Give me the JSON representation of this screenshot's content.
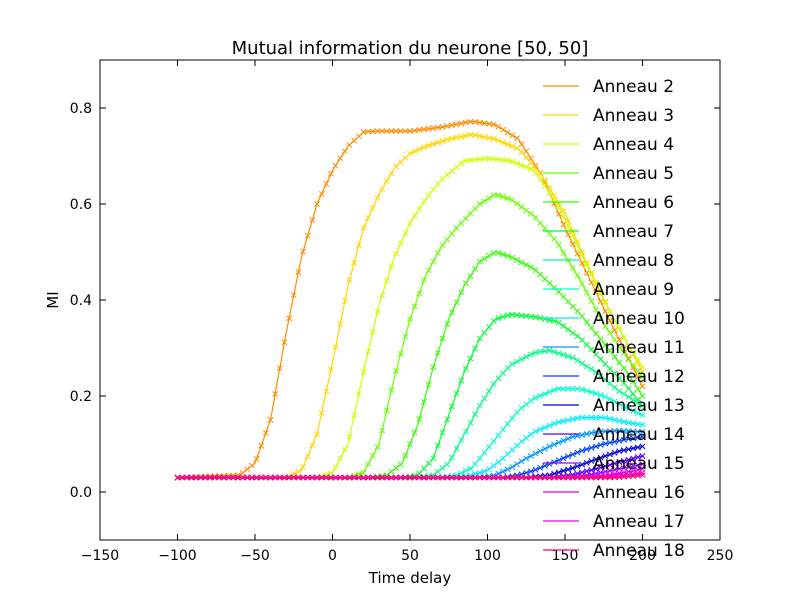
{
  "chart_data": {
    "type": "line",
    "title": "Mutual information du neurone [50, 50]",
    "xlabel": "Time delay",
    "ylabel": "MI",
    "xlim": [
      -150,
      250
    ],
    "ylim": [
      -0.1,
      0.9
    ],
    "xticks": [
      "−150",
      "−100",
      "−50",
      "0",
      "50",
      "100",
      "150",
      "200",
      "250"
    ],
    "yticks": [
      "0.0",
      "0.2",
      "0.4",
      "0.6",
      "0.8"
    ],
    "xtick_values": [
      -150,
      -100,
      -50,
      0,
      50,
      100,
      150,
      200,
      250
    ],
    "ytick_values": [
      0.0,
      0.2,
      0.4,
      0.6,
      0.8
    ],
    "grid": false,
    "legend_position": "top-right",
    "marker": "x",
    "x_range": [
      -100,
      200
    ],
    "series": [
      {
        "name": "Anneau 2",
        "color": "#ff8c00",
        "points": [
          [
            -100,
            0.03
          ],
          [
            -60,
            0.035
          ],
          [
            -50,
            0.06
          ],
          [
            -40,
            0.15
          ],
          [
            -30,
            0.33
          ],
          [
            -20,
            0.49
          ],
          [
            -10,
            0.6
          ],
          [
            0,
            0.67
          ],
          [
            10,
            0.72
          ],
          [
            20,
            0.75
          ],
          [
            30,
            0.752
          ],
          [
            50,
            0.752
          ],
          [
            70,
            0.76
          ],
          [
            90,
            0.772
          ],
          [
            105,
            0.765
          ],
          [
            120,
            0.735
          ],
          [
            135,
            0.66
          ],
          [
            150,
            0.55
          ],
          [
            165,
            0.45
          ],
          [
            180,
            0.35
          ],
          [
            200,
            0.22
          ]
        ]
      },
      {
        "name": "Anneau 3",
        "color": "#ffd700",
        "points": [
          [
            -100,
            0.03
          ],
          [
            -30,
            0.03
          ],
          [
            -20,
            0.045
          ],
          [
            -10,
            0.12
          ],
          [
            0,
            0.27
          ],
          [
            10,
            0.43
          ],
          [
            20,
            0.55
          ],
          [
            30,
            0.62
          ],
          [
            40,
            0.675
          ],
          [
            50,
            0.705
          ],
          [
            60,
            0.72
          ],
          [
            75,
            0.735
          ],
          [
            90,
            0.745
          ],
          [
            105,
            0.735
          ],
          [
            120,
            0.715
          ],
          [
            135,
            0.66
          ],
          [
            150,
            0.58
          ],
          [
            165,
            0.47
          ],
          [
            180,
            0.37
          ],
          [
            200,
            0.25
          ]
        ]
      },
      {
        "name": "Anneau 4",
        "color": "#ccff00",
        "points": [
          [
            -100,
            0.03
          ],
          [
            -10,
            0.03
          ],
          [
            0,
            0.04
          ],
          [
            10,
            0.1
          ],
          [
            20,
            0.25
          ],
          [
            30,
            0.39
          ],
          [
            40,
            0.49
          ],
          [
            50,
            0.56
          ],
          [
            60,
            0.61
          ],
          [
            70,
            0.65
          ],
          [
            85,
            0.69
          ],
          [
            100,
            0.695
          ],
          [
            115,
            0.69
          ],
          [
            130,
            0.67
          ],
          [
            145,
            0.6
          ],
          [
            160,
            0.5
          ],
          [
            175,
            0.4
          ],
          [
            190,
            0.31
          ],
          [
            200,
            0.26
          ]
        ]
      },
      {
        "name": "Anneau 5",
        "color": "#66ff00",
        "points": [
          [
            -100,
            0.03
          ],
          [
            10,
            0.03
          ],
          [
            20,
            0.04
          ],
          [
            30,
            0.1
          ],
          [
            40,
            0.24
          ],
          [
            50,
            0.36
          ],
          [
            60,
            0.45
          ],
          [
            70,
            0.51
          ],
          [
            80,
            0.55
          ],
          [
            95,
            0.6
          ],
          [
            105,
            0.62
          ],
          [
            115,
            0.61
          ],
          [
            130,
            0.575
          ],
          [
            145,
            0.52
          ],
          [
            160,
            0.44
          ],
          [
            175,
            0.35
          ],
          [
            190,
            0.28
          ],
          [
            200,
            0.24
          ]
        ]
      },
      {
        "name": "Anneau 6",
        "color": "#33ff00",
        "points": [
          [
            -100,
            0.03
          ],
          [
            25,
            0.03
          ],
          [
            35,
            0.035
          ],
          [
            45,
            0.06
          ],
          [
            55,
            0.14
          ],
          [
            65,
            0.26
          ],
          [
            75,
            0.36
          ],
          [
            85,
            0.43
          ],
          [
            95,
            0.48
          ],
          [
            105,
            0.5
          ],
          [
            115,
            0.49
          ],
          [
            130,
            0.465
          ],
          [
            145,
            0.42
          ],
          [
            160,
            0.37
          ],
          [
            175,
            0.31
          ],
          [
            190,
            0.25
          ],
          [
            200,
            0.2
          ]
        ]
      },
      {
        "name": "Anneau 7",
        "color": "#00ff33",
        "points": [
          [
            -100,
            0.03
          ],
          [
            45,
            0.03
          ],
          [
            55,
            0.035
          ],
          [
            65,
            0.07
          ],
          [
            75,
            0.16
          ],
          [
            85,
            0.25
          ],
          [
            95,
            0.32
          ],
          [
            105,
            0.36
          ],
          [
            115,
            0.37
          ],
          [
            130,
            0.365
          ],
          [
            145,
            0.355
          ],
          [
            160,
            0.32
          ],
          [
            175,
            0.27
          ],
          [
            190,
            0.22
          ],
          [
            200,
            0.18
          ]
        ]
      },
      {
        "name": "Anneau 8",
        "color": "#00ff88",
        "points": [
          [
            -100,
            0.03
          ],
          [
            55,
            0.03
          ],
          [
            65,
            0.035
          ],
          [
            75,
            0.06
          ],
          [
            85,
            0.12
          ],
          [
            95,
            0.18
          ],
          [
            105,
            0.23
          ],
          [
            115,
            0.265
          ],
          [
            130,
            0.29
          ],
          [
            140,
            0.295
          ],
          [
            155,
            0.28
          ],
          [
            170,
            0.25
          ],
          [
            185,
            0.21
          ],
          [
            200,
            0.18
          ]
        ]
      },
      {
        "name": "Anneau 9",
        "color": "#00ffcc",
        "points": [
          [
            -100,
            0.03
          ],
          [
            70,
            0.03
          ],
          [
            80,
            0.035
          ],
          [
            90,
            0.05
          ],
          [
            100,
            0.09
          ],
          [
            110,
            0.13
          ],
          [
            120,
            0.17
          ],
          [
            130,
            0.195
          ],
          [
            145,
            0.215
          ],
          [
            160,
            0.215
          ],
          [
            175,
            0.2
          ],
          [
            190,
            0.175
          ],
          [
            200,
            0.16
          ]
        ]
      },
      {
        "name": "Anneau 10",
        "color": "#00eeff",
        "points": [
          [
            -100,
            0.03
          ],
          [
            80,
            0.03
          ],
          [
            90,
            0.035
          ],
          [
            100,
            0.045
          ],
          [
            110,
            0.07
          ],
          [
            120,
            0.1
          ],
          [
            130,
            0.125
          ],
          [
            145,
            0.145
          ],
          [
            160,
            0.155
          ],
          [
            175,
            0.155
          ],
          [
            190,
            0.145
          ],
          [
            200,
            0.14
          ]
        ]
      },
      {
        "name": "Anneau 11",
        "color": "#0099ff",
        "points": [
          [
            -100,
            0.03
          ],
          [
            95,
            0.03
          ],
          [
            105,
            0.035
          ],
          [
            115,
            0.05
          ],
          [
            125,
            0.07
          ],
          [
            140,
            0.095
          ],
          [
            155,
            0.115
          ],
          [
            170,
            0.125
          ],
          [
            185,
            0.128
          ],
          [
            200,
            0.125
          ]
        ]
      },
      {
        "name": "Anneau 12",
        "color": "#0044ff",
        "points": [
          [
            -100,
            0.03
          ],
          [
            110,
            0.03
          ],
          [
            120,
            0.035
          ],
          [
            130,
            0.045
          ],
          [
            145,
            0.065
          ],
          [
            160,
            0.085
          ],
          [
            175,
            0.1
          ],
          [
            190,
            0.11
          ],
          [
            200,
            0.115
          ]
        ]
      },
      {
        "name": "Anneau 13",
        "color": "#0000dd",
        "points": [
          [
            -100,
            0.03
          ],
          [
            125,
            0.03
          ],
          [
            140,
            0.035
          ],
          [
            155,
            0.05
          ],
          [
            170,
            0.068
          ],
          [
            185,
            0.085
          ],
          [
            200,
            0.095
          ]
        ]
      },
      {
        "name": "Anneau 14",
        "color": "#5500ff",
        "points": [
          [
            -100,
            0.03
          ],
          [
            140,
            0.03
          ],
          [
            155,
            0.036
          ],
          [
            170,
            0.048
          ],
          [
            185,
            0.062
          ],
          [
            200,
            0.075
          ]
        ]
      },
      {
        "name": "Anneau 15",
        "color": "#9900ff",
        "points": [
          [
            -100,
            0.03
          ],
          [
            150,
            0.03
          ],
          [
            165,
            0.035
          ],
          [
            180,
            0.045
          ],
          [
            200,
            0.058
          ]
        ]
      },
      {
        "name": "Anneau 16",
        "color": "#dd00ff",
        "points": [
          [
            -100,
            0.03
          ],
          [
            160,
            0.03
          ],
          [
            175,
            0.034
          ],
          [
            190,
            0.042
          ],
          [
            200,
            0.048
          ]
        ]
      },
      {
        "name": "Anneau 17",
        "color": "#ff00cc",
        "points": [
          [
            -100,
            0.03
          ],
          [
            170,
            0.03
          ],
          [
            185,
            0.034
          ],
          [
            200,
            0.04
          ]
        ]
      },
      {
        "name": "Anneau 18",
        "color": "#ff0077",
        "points": [
          [
            -100,
            0.03
          ],
          [
            180,
            0.03
          ],
          [
            190,
            0.032
          ],
          [
            200,
            0.035
          ]
        ]
      }
    ]
  }
}
